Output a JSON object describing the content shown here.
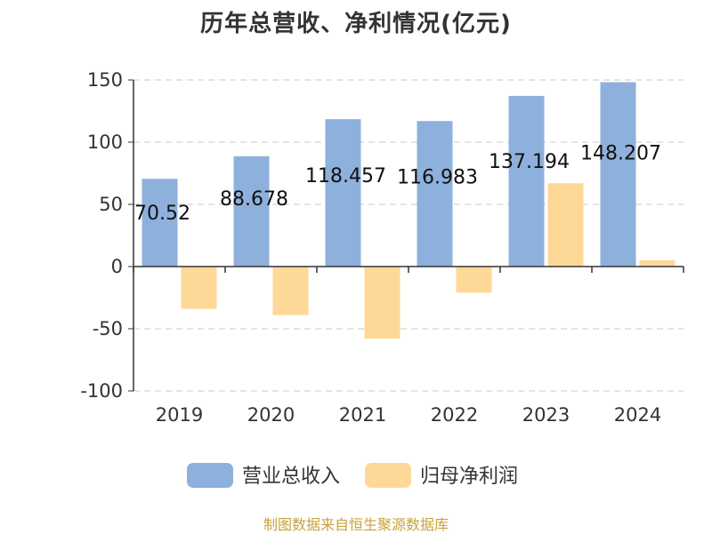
{
  "chart_data": {
    "type": "bar",
    "title": "历年总营收、净利情况(亿元)",
    "categories": [
      "2019",
      "2020",
      "2021",
      "2022",
      "2023",
      "2024"
    ],
    "series": [
      {
        "name": "营业总收入",
        "color": "#8eb0dc",
        "values": [
          70.52,
          88.678,
          118.457,
          116.983,
          137.194,
          148.207
        ],
        "labels": [
          "70.52",
          "88.678",
          "118.457",
          "116.983",
          "137.194",
          "148.207"
        ]
      },
      {
        "name": "归母净利润",
        "color": "#fed897",
        "values": [
          -34,
          -39,
          -58,
          -21,
          67,
          5
        ]
      }
    ],
    "ylim": [
      -100,
      150
    ],
    "yticks": [
      -100,
      -50,
      0,
      50,
      100,
      150
    ],
    "ytick_labels": [
      "-100",
      "-50",
      "0",
      "50",
      "100",
      "150"
    ],
    "grid": true,
    "legend_position": "bottom"
  },
  "footer": {
    "source": "制图数据来自恒生聚源数据库"
  }
}
